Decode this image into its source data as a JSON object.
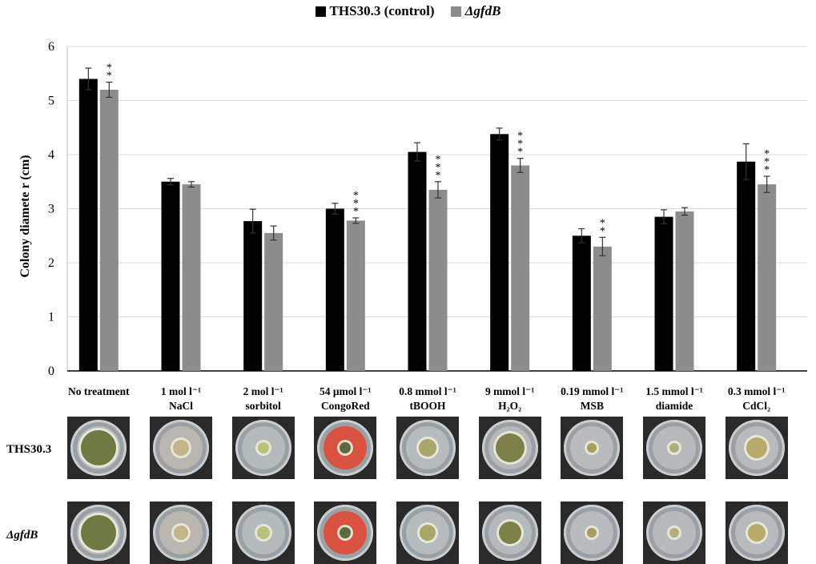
{
  "legend": {
    "control_label": "THS30.3 (control)",
    "mutant_label": "ΔgfdB",
    "control_color": "#000000",
    "mutant_color": "#8c8c8c"
  },
  "plates": {
    "row1_label": "THS30.3",
    "row2_label": "ΔgfdB"
  },
  "chart_data": {
    "type": "bar",
    "title": "",
    "xlabel": "",
    "ylabel": "Colony diamete r (cm)",
    "ylim": [
      0,
      6
    ],
    "yticks": [
      "0",
      "1",
      "2",
      "3",
      "4",
      "5",
      "6"
    ],
    "grid": true,
    "legend_position": "top",
    "categories": [
      {
        "line1": "No treatment",
        "line2": ""
      },
      {
        "line1": "1 mol l⁻¹",
        "line2": "NaCl"
      },
      {
        "line1": "2 mol l⁻¹",
        "line2": "sorbitol"
      },
      {
        "line1": "54 μmol l⁻¹",
        "line2": "CongoRed"
      },
      {
        "line1": "0.8 mmol l⁻¹",
        "line2": "tBOOH"
      },
      {
        "line1": "9 mmol l⁻¹",
        "line2": "H₂O₂"
      },
      {
        "line1": "0.19 mmol l⁻¹",
        "line2": "MSB"
      },
      {
        "line1": "1.5 mmol l⁻¹",
        "line2": "diamide"
      },
      {
        "line1": "0.3 mmol l⁻¹",
        "line2": "CdCl₂"
      }
    ],
    "series": [
      {
        "name": "THS30.3 (control)",
        "color": "#000000",
        "values": [
          5.4,
          3.5,
          2.77,
          3.0,
          4.05,
          4.38,
          2.5,
          2.85,
          3.87
        ],
        "errors": [
          0.2,
          0.06,
          0.22,
          0.1,
          0.17,
          0.11,
          0.13,
          0.13,
          0.33
        ]
      },
      {
        "name": "ΔgfdB",
        "color": "#8c8c8c",
        "values": [
          5.2,
          3.45,
          2.55,
          2.78,
          3.35,
          3.8,
          2.3,
          2.95,
          3.45
        ],
        "errors": [
          0.14,
          0.05,
          0.13,
          0.05,
          0.15,
          0.13,
          0.17,
          0.07,
          0.15
        ],
        "significance": [
          "**",
          "",
          "",
          "***",
          "***",
          "***",
          "**",
          "",
          "***"
        ]
      }
    ]
  }
}
